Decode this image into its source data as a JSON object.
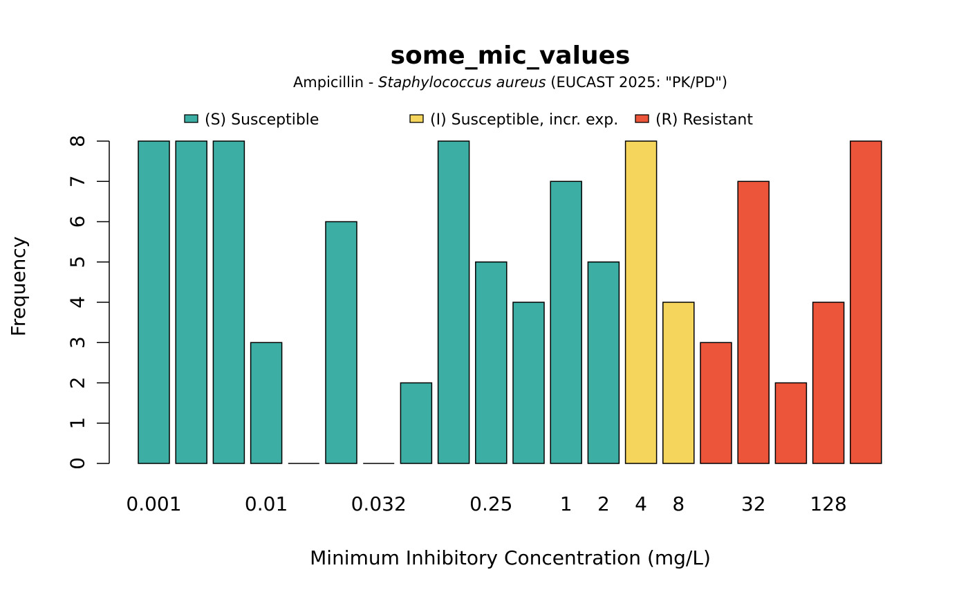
{
  "chart_data": {
    "type": "bar",
    "title": "some_mic_values",
    "subtitle": {
      "prefix": "Ampicillin - ",
      "organism": "Staphylococcus aureus",
      "suffix": " (EUCAST 2025: \"PK/PD\")"
    },
    "xlabel": "Minimum Inhibitory Concentration (mg/L)",
    "ylabel": "Frequency",
    "ylim": [
      0,
      8
    ],
    "yticks": [
      0,
      1,
      2,
      3,
      4,
      5,
      6,
      7,
      8
    ],
    "legend_position": "top",
    "legend": [
      {
        "label": "(S) Susceptible",
        "color": "#3CAEA3"
      },
      {
        "label": "(I) Susceptible, incr. exp.",
        "color": "#F6D55C"
      },
      {
        "label": "(R) Resistant",
        "color": "#ED553B"
      }
    ],
    "categories": [
      "0.001",
      "",
      "",
      "0.01",
      "",
      "",
      "0.032",
      "",
      "",
      "0.25",
      "",
      "1",
      "2",
      "4",
      "8",
      "",
      "32",
      "",
      "128",
      ""
    ],
    "values": [
      8,
      8,
      8,
      3,
      0,
      6,
      0,
      2,
      8,
      5,
      4,
      7,
      5,
      8,
      4,
      3,
      7,
      2,
      4,
      8
    ],
    "interpretation": [
      "S",
      "S",
      "S",
      "S",
      "S",
      "S",
      "S",
      "S",
      "S",
      "S",
      "S",
      "S",
      "S",
      "I",
      "I",
      "R",
      "R",
      "R",
      "R",
      "R"
    ],
    "x_tick_labels": [
      {
        "bar": 0,
        "label": "0.001"
      },
      {
        "bar": 3,
        "label": "0.01"
      },
      {
        "bar": 6,
        "label": "0.032"
      },
      {
        "bar": 9,
        "label": "0.25"
      },
      {
        "bar": 11,
        "label": "1"
      },
      {
        "bar": 12,
        "label": "2"
      },
      {
        "bar": 13,
        "label": "4"
      },
      {
        "bar": 14,
        "label": "8"
      },
      {
        "bar": 16,
        "label": "32"
      },
      {
        "bar": 18,
        "label": "128"
      }
    ],
    "colors": {
      "S": "#3CAEA3",
      "I": "#F6D55C",
      "R": "#ED553B"
    }
  }
}
